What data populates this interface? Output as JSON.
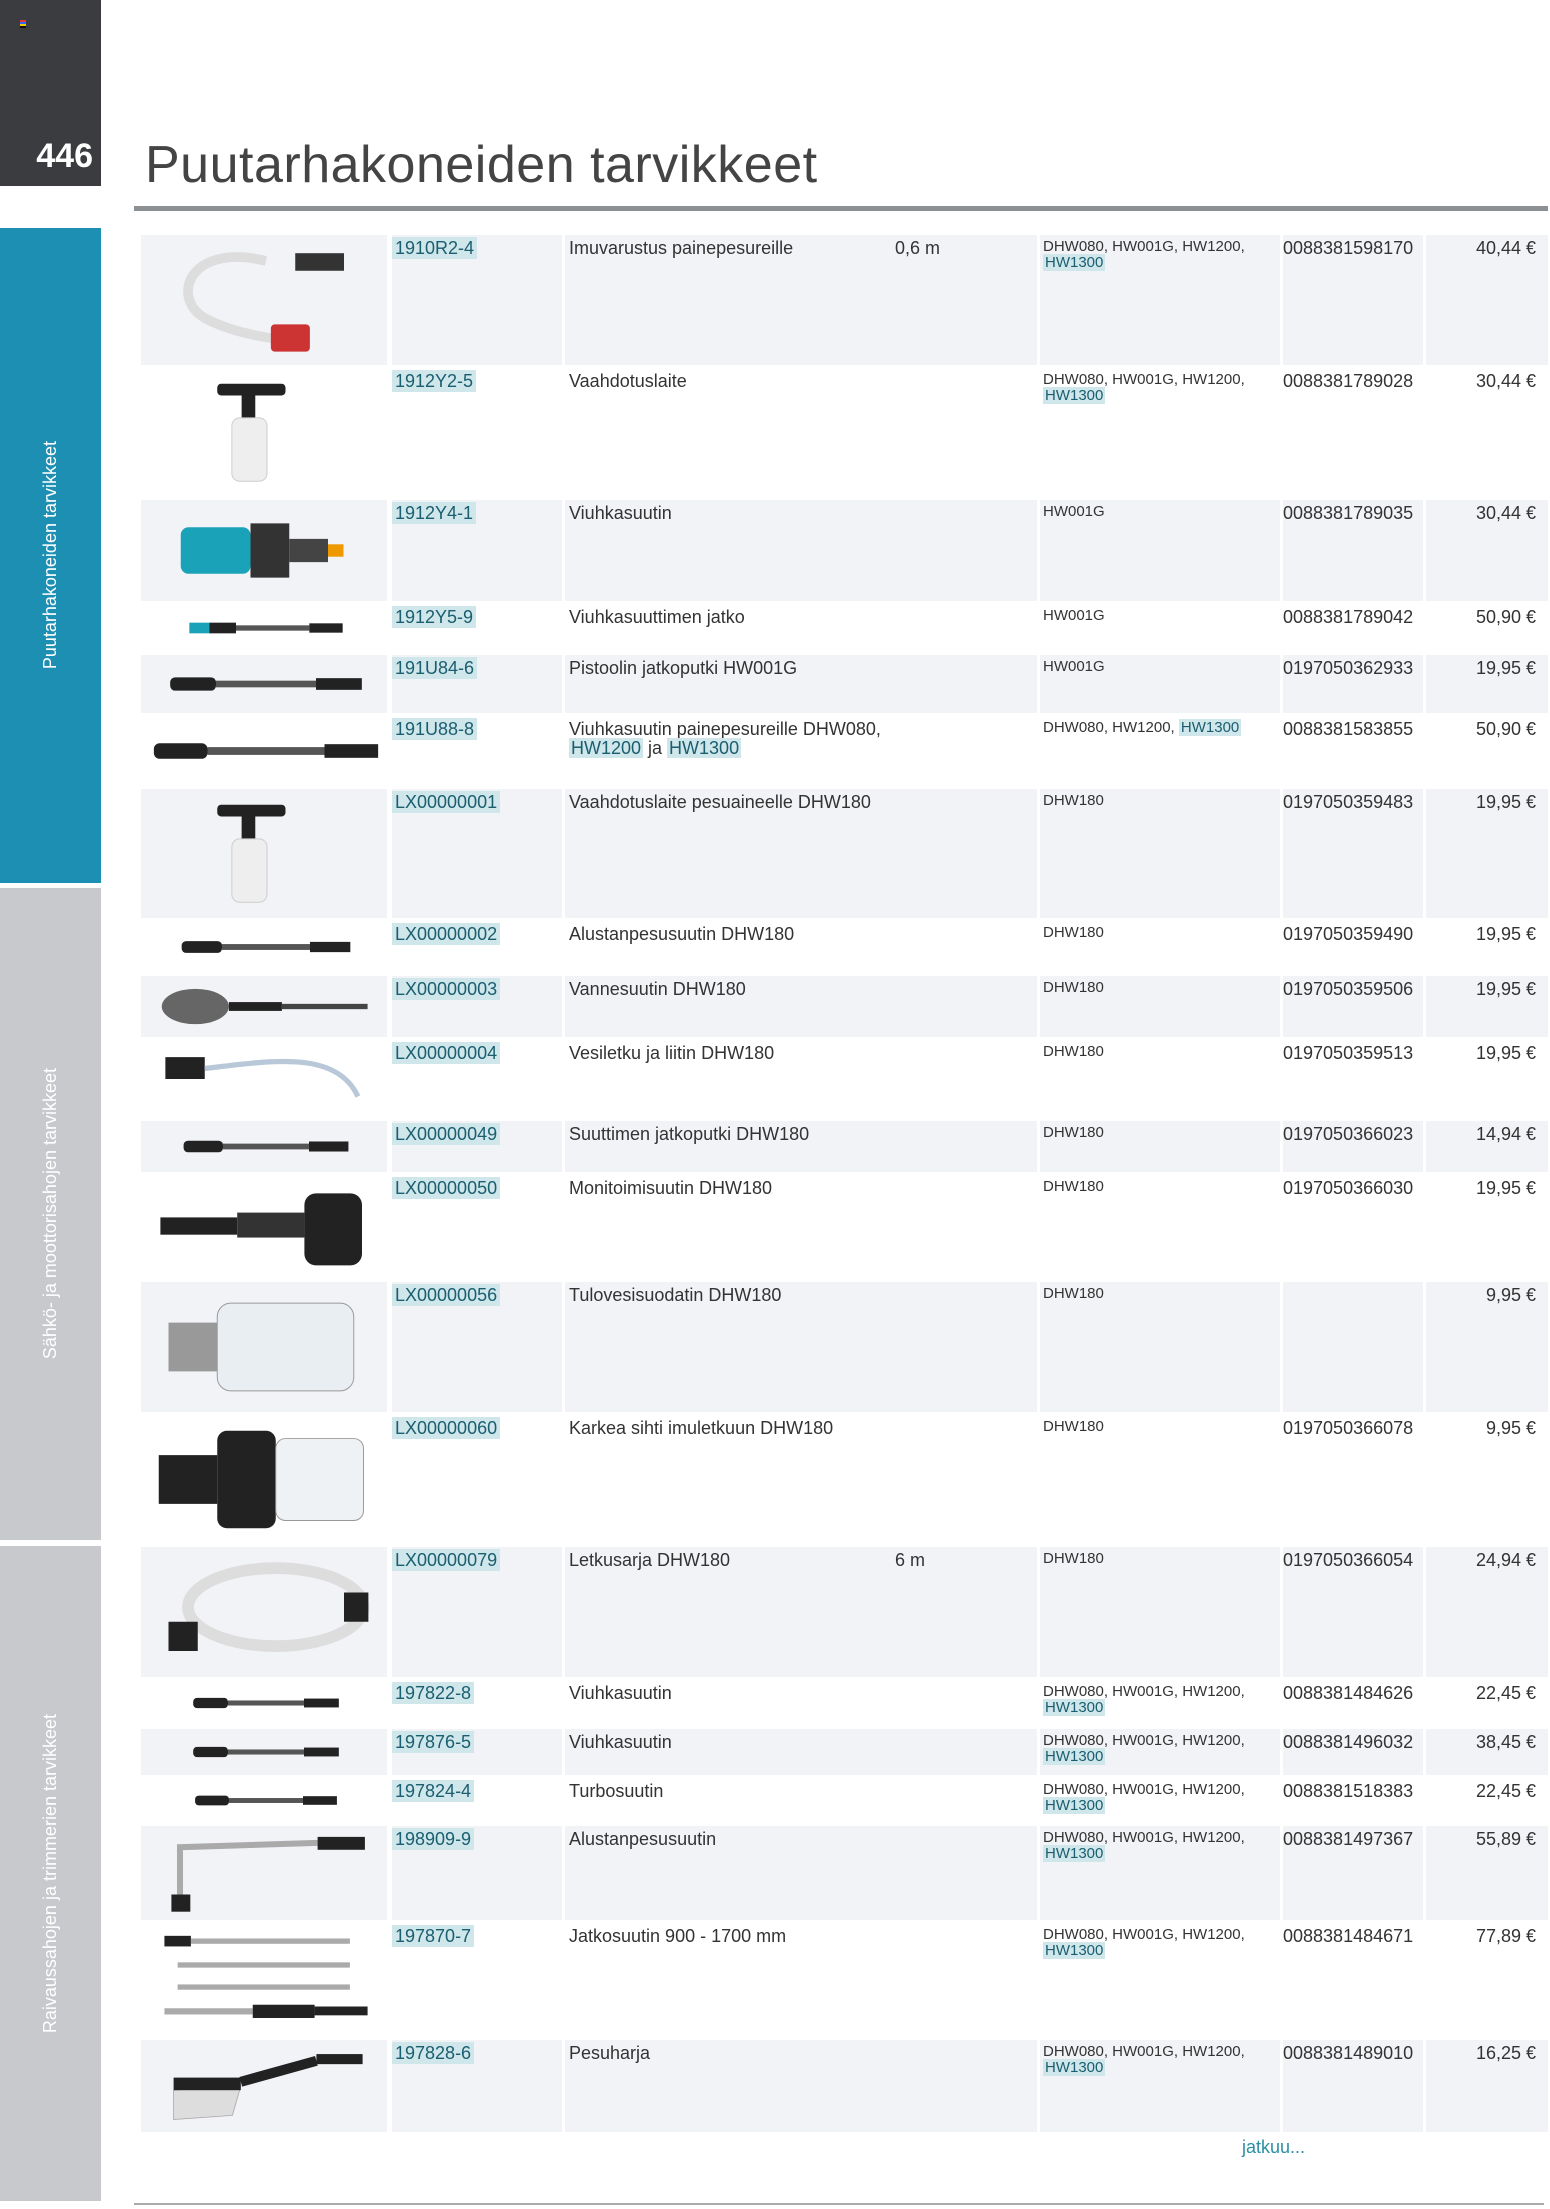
{
  "page_number": "446",
  "title": "Puutarhakoneiden tarvikkeet",
  "side_tabs": [
    {
      "label": "Puutarhakoneiden tarvikkeet",
      "color": "#1d8fb3",
      "active": true
    },
    {
      "label": "Sähkö- ja moottorisahojen tarvikkeet",
      "color": "#c7c9cc",
      "active": false
    },
    {
      "label": "Raivaussahojen ja trimmerien tarvikkeet",
      "color": "#c7c9cc",
      "active": false
    }
  ],
  "continued_label": "jatkuu...",
  "colors": {
    "accent": "#1d8fb3",
    "highlight": "#cfe6ea",
    "row_shade": "#f2f3f7",
    "dark": "#3a3c3f"
  },
  "products": [
    {
      "image": "hose-suction-kit",
      "code": "1910R2-4",
      "desc": [
        {
          "t": "Imuvarustus painepesureille"
        }
      ],
      "length": "0,6 m",
      "models": "DHW080, HW001G, HW1200,",
      "models_hl": "HW1300",
      "ean": "0088381598170",
      "price": "40,44 €"
    },
    {
      "image": "foam-bottle",
      "code": "1912Y2-5",
      "desc": [
        {
          "t": "Vaahdotuslaite"
        }
      ],
      "length": "",
      "models": "DHW080, HW001G, HW1200,",
      "models_hl": "HW1300",
      "ean": "0088381789028",
      "price": "30,44 €"
    },
    {
      "image": "blue-nozzle",
      "code": "1912Y4-1",
      "desc": [
        {
          "t": "Viuhkasuutin"
        }
      ],
      "length": "",
      "models": "HW001G",
      "models_hl": "",
      "ean": "0088381789035",
      "price": "30,44 €"
    },
    {
      "image": "lance-blue",
      "code": "1912Y5-9",
      "desc": [
        {
          "t": "Viuhkasuuttimen jatko"
        }
      ],
      "length": "",
      "models": "HW001G",
      "models_hl": "",
      "ean": "0088381789042",
      "price": "50,90 €"
    },
    {
      "image": "lance",
      "code": "191U84-6",
      "desc": [
        {
          "t": "Pistoolin jatkoputki HW001G"
        }
      ],
      "length": "",
      "models": "HW001G",
      "models_hl": "",
      "ean": "0197050362933",
      "price": "19,95 €"
    },
    {
      "image": "lance",
      "code": "191U88-8",
      "desc": [
        {
          "t": "Viuhkasuutin painepesureille DHW080, "
        },
        {
          "t": "HW1200",
          "hl": true
        },
        {
          "t": " ja "
        },
        {
          "t": "HW1300",
          "hl": true
        }
      ],
      "length": "",
      "models": "DHW080, HW1200,",
      "models_hl": "HW1300",
      "ean": "0088381583855",
      "price": "50,90 €"
    },
    {
      "image": "foam-bottle",
      "code": "LX00000001",
      "desc": [
        {
          "t": "Vaahdotuslaite pesuaineelle DHW180"
        }
      ],
      "length": "",
      "models": "DHW180",
      "models_hl": "",
      "ean": "0197050359483",
      "price": "19,95 €"
    },
    {
      "image": "lance",
      "code": "LX00000002",
      "desc": [
        {
          "t": "Alustanpesusuutin DHW180"
        }
      ],
      "length": "",
      "models": "DHW180",
      "models_hl": "",
      "ean": "0197050359490",
      "price": "19,95 €"
    },
    {
      "image": "wheel-brush",
      "code": "LX00000003",
      "desc": [
        {
          "t": "Vannesuutin DHW180"
        }
      ],
      "length": "",
      "models": "DHW180",
      "models_hl": "",
      "ean": "0197050359506",
      "price": "19,95 €"
    },
    {
      "image": "water-hose",
      "code": "LX00000004",
      "desc": [
        {
          "t": "Vesiletku ja liitin DHW180"
        }
      ],
      "length": "",
      "models": "DHW180",
      "models_hl": "",
      "ean": "0197050359513",
      "price": "19,95 €"
    },
    {
      "image": "lance",
      "code": "LX00000049",
      "desc": [
        {
          "t": "Suuttimen jatkoputki DHW180"
        }
      ],
      "length": "",
      "models": "DHW180",
      "models_hl": "",
      "ean": "0197050366023",
      "price": "14,94 €"
    },
    {
      "image": "multi-nozzle",
      "code": "LX00000050",
      "desc": [
        {
          "t": "Monitoimisuutin DHW180"
        }
      ],
      "length": "",
      "models": "DHW180",
      "models_hl": "",
      "ean": "0197050366030",
      "price": "19,95 €"
    },
    {
      "image": "inlet-filter",
      "code": "LX00000056",
      "desc": [
        {
          "t": "Tulovesisuodatin DHW180"
        }
      ],
      "length": "",
      "models": "DHW180",
      "models_hl": "",
      "ean": "",
      "price": "9,95 €"
    },
    {
      "image": "coarse-filter",
      "code": "LX00000060",
      "desc": [
        {
          "t": "Karkea sihti imuletkuun DHW180"
        }
      ],
      "length": "",
      "models": "DHW180",
      "models_hl": "",
      "ean": "0197050366078",
      "price": "9,95 €"
    },
    {
      "image": "hose-coil",
      "code": "LX00000079",
      "desc": [
        {
          "t": "Letkusarja DHW180"
        }
      ],
      "length": "6 m",
      "models": "DHW180",
      "models_hl": "",
      "ean": "0197050366054",
      "price": "24,94 €"
    },
    {
      "image": "lance",
      "code": "197822-8",
      "desc": [
        {
          "t": "Viuhkasuutin"
        }
      ],
      "length": "",
      "models": "DHW080, HW001G, HW1200,",
      "models_hl": "HW1300",
      "ean": "0088381484626",
      "price": "22,45 €"
    },
    {
      "image": "lance",
      "code": "197876-5",
      "desc": [
        {
          "t": "Viuhkasuutin"
        }
      ],
      "length": "",
      "models": "DHW080, HW001G, HW1200,",
      "models_hl": "HW1300",
      "ean": "0088381496032",
      "price": "38,45 €"
    },
    {
      "image": "lance",
      "code": "197824-4",
      "desc": [
        {
          "t": "Turbosuutin"
        }
      ],
      "length": "",
      "models": "DHW080, HW001G, HW1200,",
      "models_hl": "HW1300",
      "ean": "0088381518383",
      "price": "22,45 €"
    },
    {
      "image": "bent-lance",
      "code": "198909-9",
      "desc": [
        {
          "t": "Alustanpesusuutin"
        }
      ],
      "length": "",
      "models": "DHW080, HW001G, HW1200,",
      "models_hl": "HW1300",
      "ean": "0088381497367",
      "price": "55,89 €"
    },
    {
      "image": "telescopic-lance",
      "code": "197870-7",
      "desc": [
        {
          "t": "Jatkosuutin 900 - 1700 mm"
        }
      ],
      "length": "",
      "models": "DHW080, HW001G, HW1200,",
      "models_hl": "HW1300",
      "ean": "0088381484671",
      "price": "77,89 €"
    },
    {
      "image": "wash-brush",
      "code": "197828-6",
      "desc": [
        {
          "t": "Pesuharja"
        }
      ],
      "length": "",
      "models": "DHW080, HW001G, HW1200,",
      "models_hl": "HW1300",
      "ean": "0088381489010",
      "price": "16,25 €"
    }
  ]
}
